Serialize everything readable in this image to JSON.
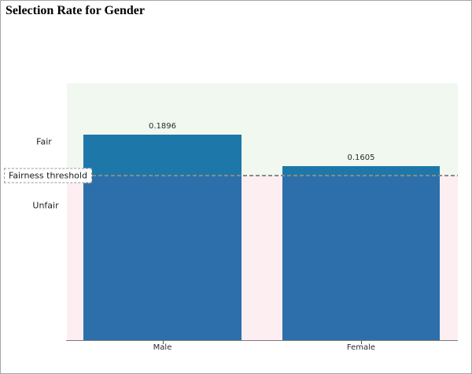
{
  "window_title": "Selection Rate for Gender",
  "zone_labels": {
    "fair": "Fair",
    "threshold": "Fairness threshold",
    "unfair": "Unfair"
  },
  "colors": {
    "bar": "#1f77b4",
    "fair_zone_overlay": "rgba(0,128,0,0.06)",
    "unfair_zone_overlay": "rgba(220,20,60,0.07)",
    "threshold_line": "#8a8a8a",
    "axis_line": "#7a7a7a",
    "text": "#2b2b2b"
  },
  "chart_data": {
    "type": "bar",
    "title": "Selection Rate for Gender",
    "categories": [
      "Male",
      "Female"
    ],
    "values": [
      0.1896,
      0.1605
    ],
    "value_labels": [
      "0.1896",
      "0.1605"
    ],
    "threshold": 0.1517,
    "threshold_label": "Fairness threshold",
    "zone_above_threshold": "Fair",
    "zone_below_threshold": "Unfair",
    "ylim": [
      0,
      0.237
    ],
    "xlabel": "",
    "ylabel": "",
    "grid": false,
    "legend": "none"
  }
}
